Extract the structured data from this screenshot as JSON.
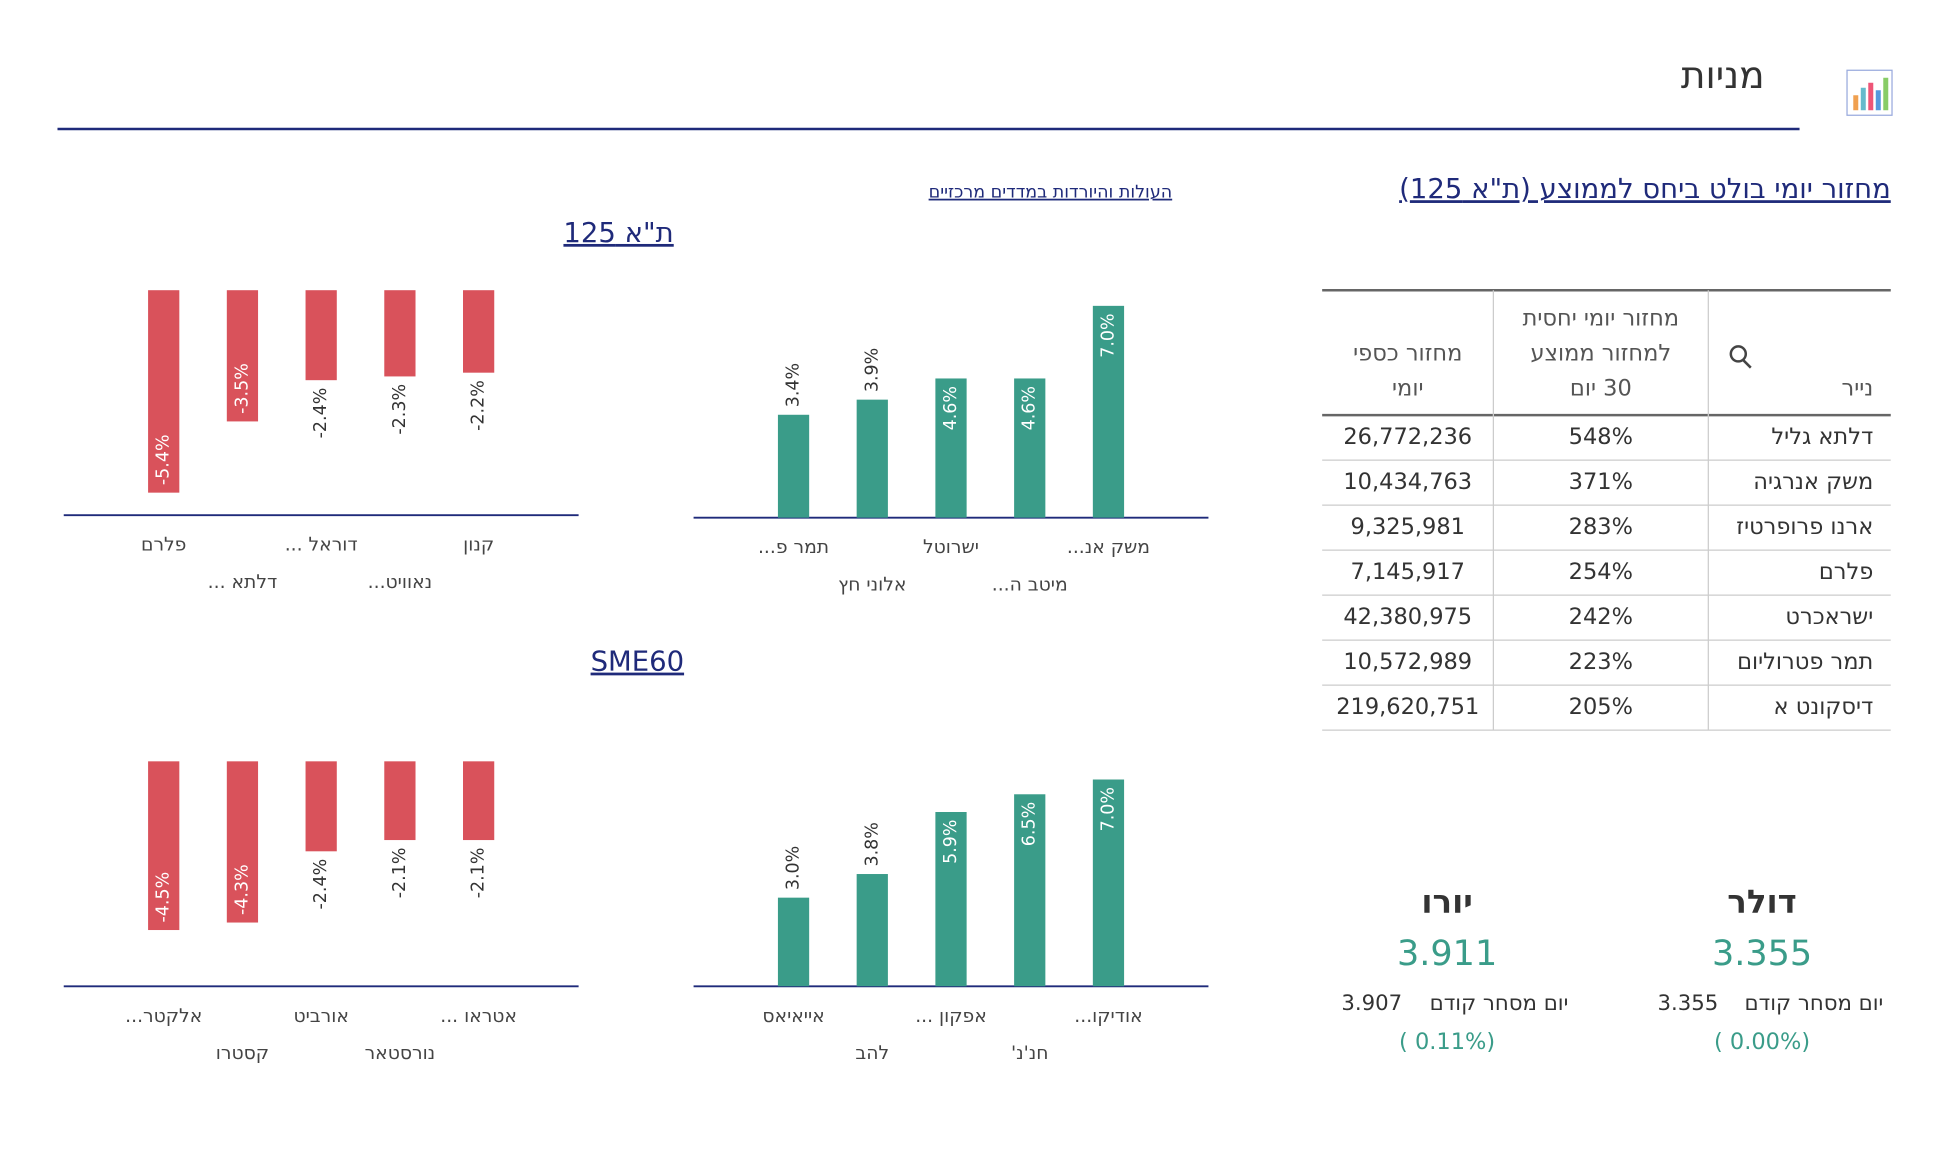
{
  "header": {
    "title": "מניות"
  },
  "table": {
    "title": "מחזור יומי בולט ביחס לממוצע (ת\"א 125)",
    "headers": [
      [
        "נייר"
      ],
      [
        "מחזור יומי יחסית",
        "למחזור ממוצע",
        "30 יום"
      ],
      [
        "מחזור כספי",
        "יומי"
      ]
    ],
    "rows": [
      [
        "דלתא גליל",
        "548%",
        "26,772,236"
      ],
      [
        "משק אנרגיה",
        "371%",
        "10,434,763"
      ],
      [
        "ארנו פרופרטיז",
        "283%",
        "9,325,981"
      ],
      [
        "פלרם",
        "254%",
        "7,145,917"
      ],
      [
        "ישראכרט",
        "242%",
        "42,380,975"
      ],
      [
        "תמר פטרוליום",
        "223%",
        "10,572,989"
      ],
      [
        "דיסקונט א",
        "205%",
        "219,620,751"
      ]
    ]
  },
  "movers_link": "העולות והיורדות במדדים מרכזיים",
  "sections": [
    {
      "title": "ת\"א 125"
    },
    {
      "title": "SME60"
    }
  ],
  "chart_data": [
    {
      "type": "bar",
      "categories": [
        "תמר פ...",
        "אלוני חץ",
        "ישרוטל",
        "מיטב ה...",
        "משק אנ..."
      ],
      "values": [
        3.4,
        3.9,
        4.6,
        4.6,
        7.0
      ],
      "value_labels": [
        "3.4%",
        "3.9%",
        "4.6%",
        "4.6%",
        "7.0%"
      ],
      "color": "#3a9c89",
      "ylim": [
        0,
        7.6
      ]
    },
    {
      "type": "bar",
      "categories": [
        "פלרם",
        "דלתא ...",
        "דוראל ...",
        "נאוויט...",
        "קנון"
      ],
      "values": [
        -5.4,
        -3.5,
        -2.4,
        -2.3,
        -2.2
      ],
      "value_labels": [
        "-5.4%",
        "-3.5%",
        "-2.4%",
        "-2.3%",
        "-2.2%"
      ],
      "color": "#d9525b",
      "ylim": [
        -6,
        0
      ]
    },
    {
      "type": "bar",
      "categories": [
        "אייאיאס",
        "להב",
        "אפקון ...",
        "חנ'נ'",
        "אודיקו..."
      ],
      "values": [
        3.0,
        3.8,
        5.9,
        6.5,
        7.0
      ],
      "value_labels": [
        "3.0%",
        "3.8%",
        "5.9%",
        "6.5%",
        "7.0%"
      ],
      "color": "#3a9c89",
      "ylim": [
        0,
        7.7
      ]
    },
    {
      "type": "bar",
      "categories": [
        "אלקטר...",
        "קסטרו",
        "אורביט",
        "נורסטאר",
        "אטראו ..."
      ],
      "values": [
        -4.5,
        -4.3,
        -2.4,
        -2.1,
        -2.1
      ],
      "value_labels": [
        "-4.5%",
        "-4.3%",
        "-2.4%",
        "-2.1%",
        "-2.1%"
      ],
      "color": "#d9525b",
      "ylim": [
        -6,
        0
      ]
    }
  ],
  "currencies": [
    {
      "name": "דולר",
      "value": "3.355",
      "prev_label": "יום מסחר קודם",
      "prev_value": "3.355",
      "change": "( 0.00%)"
    },
    {
      "name": "יורו",
      "value": "3.911",
      "prev_label": "יום מסחר קודם",
      "prev_value": "3.907",
      "change": "( 0.11%)"
    }
  ]
}
